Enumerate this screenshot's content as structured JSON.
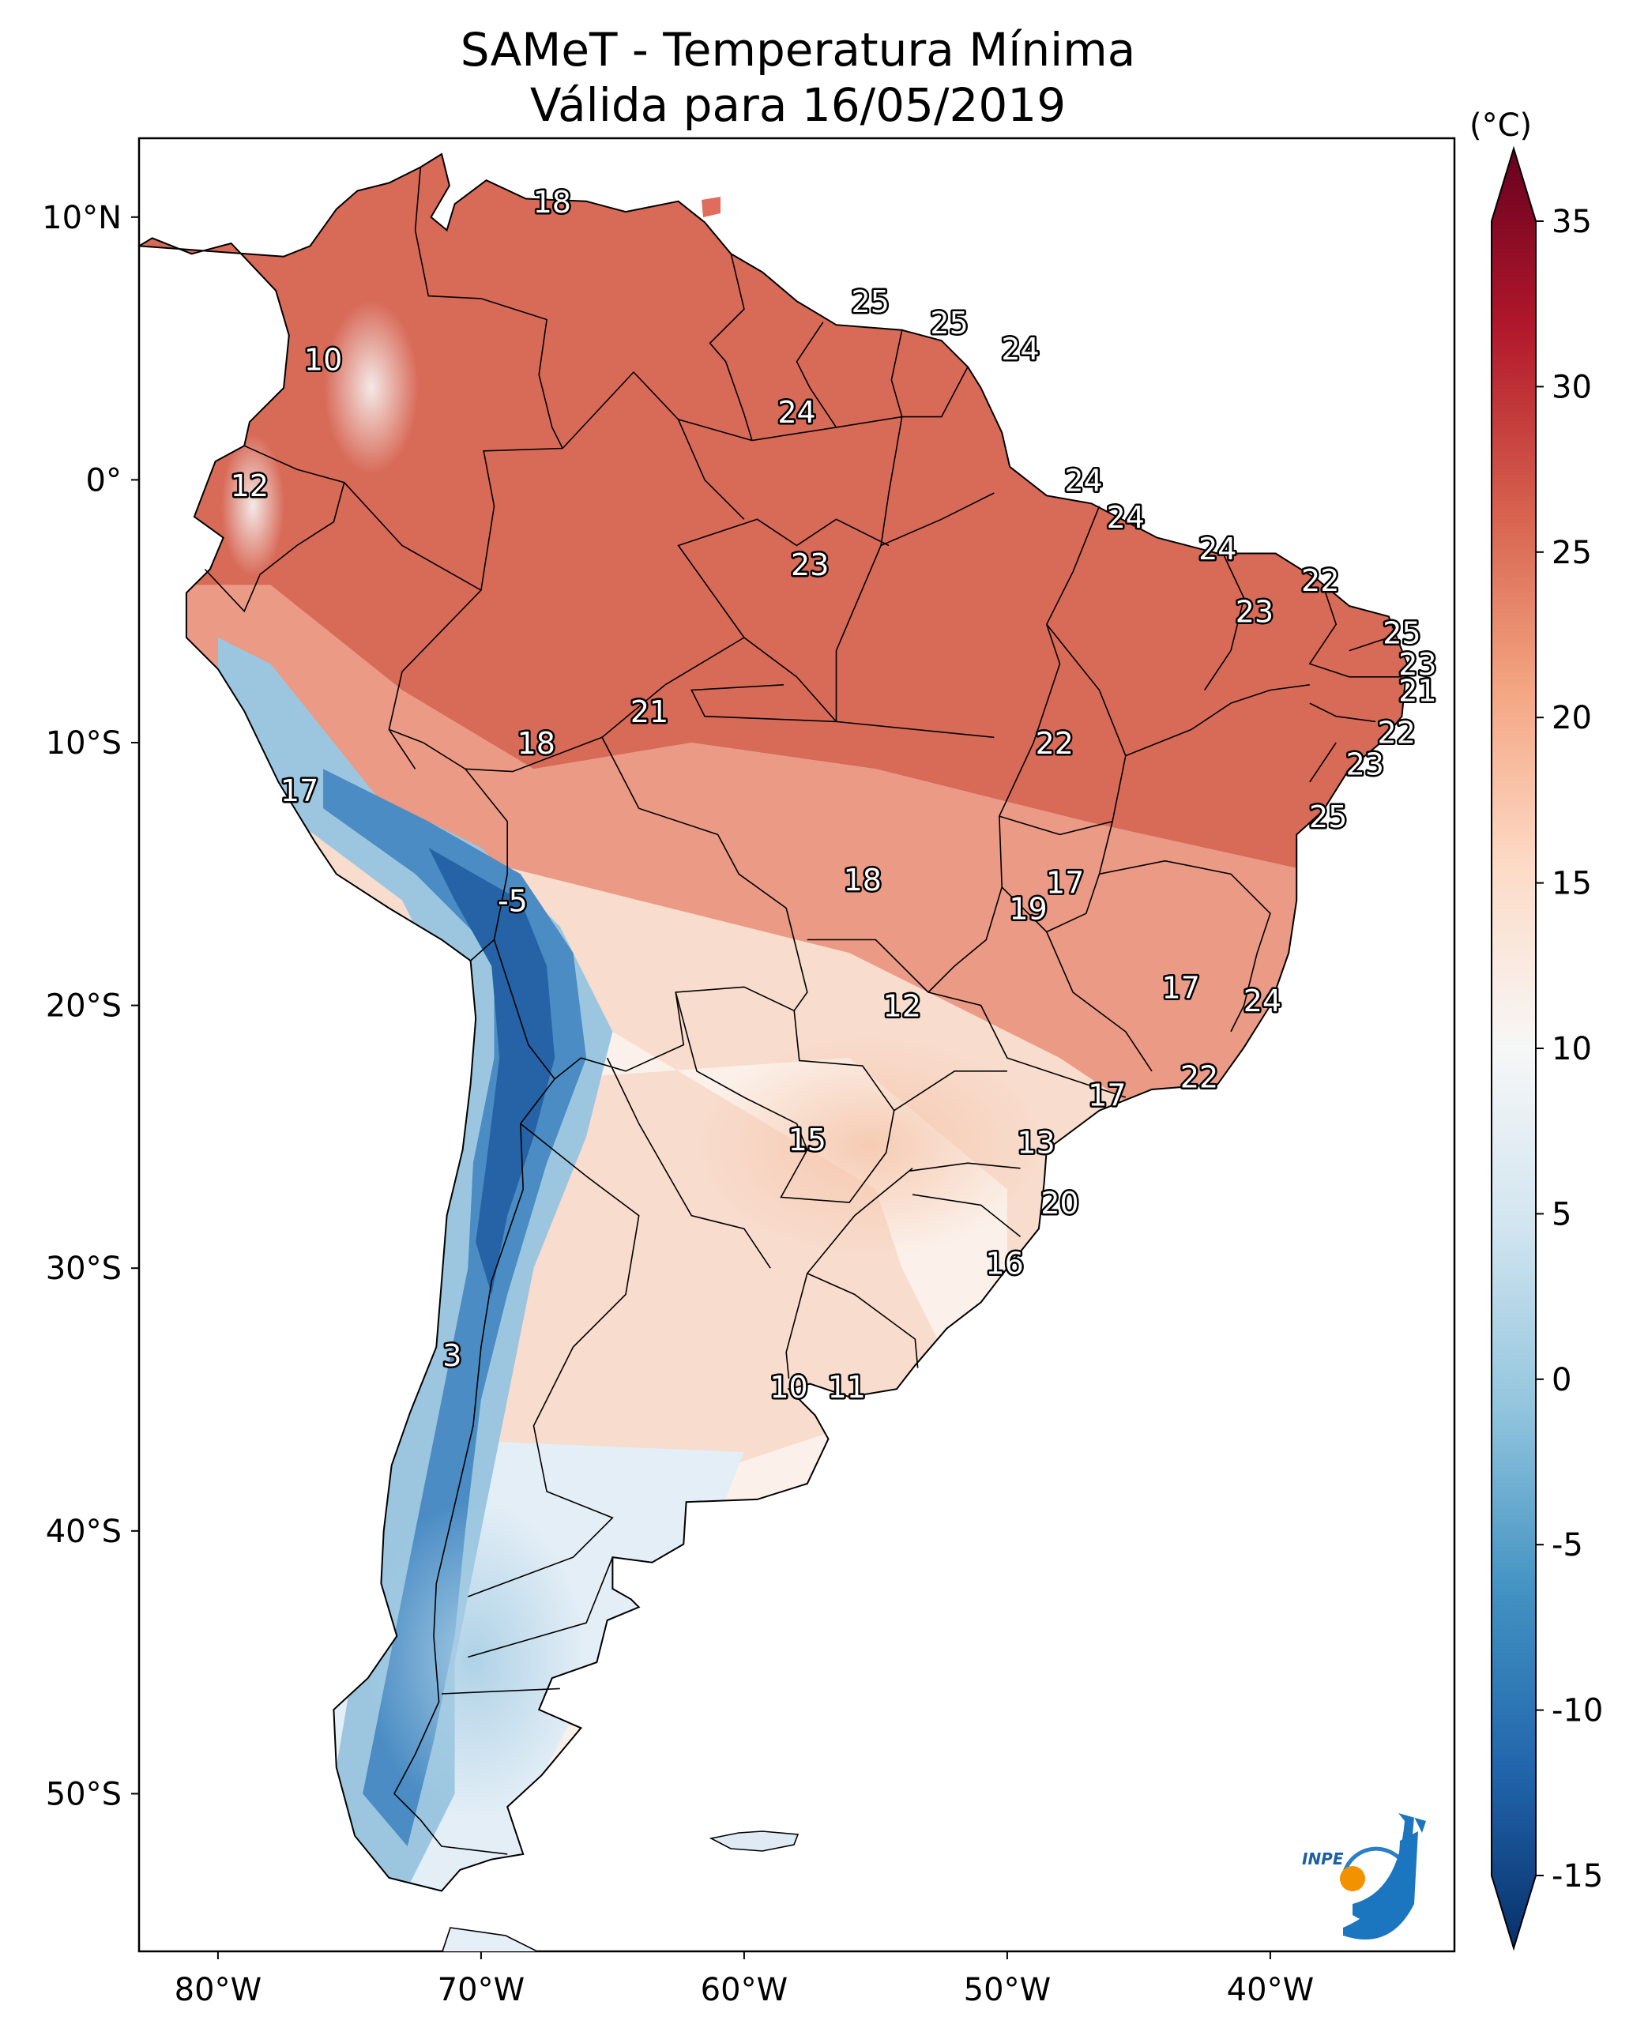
{
  "title": {
    "line1": "SAMeT - Temperatura Mínima",
    "line2": "Válida para 16/05/2019"
  },
  "axes": {
    "lat_ticks": [
      {
        "label": "10°N",
        "lat": 10
      },
      {
        "label": "0°",
        "lat": 0
      },
      {
        "label": "10°S",
        "lat": -10
      },
      {
        "label": "20°S",
        "lat": -20
      },
      {
        "label": "30°S",
        "lat": -30
      },
      {
        "label": "40°S",
        "lat": -40
      },
      {
        "label": "50°S",
        "lat": -50
      }
    ],
    "lon_ticks": [
      {
        "label": "80°W",
        "lon": -80
      },
      {
        "label": "70°W",
        "lon": -70
      },
      {
        "label": "60°W",
        "lon": -60
      },
      {
        "label": "50°W",
        "lon": -50
      },
      {
        "label": "40°W",
        "lon": -40
      }
    ],
    "lon_range": [
      -83,
      -33
    ],
    "lat_range": [
      -56,
      13
    ]
  },
  "colorbar": {
    "unit": "(°C)",
    "ticks": [
      "35",
      "30",
      "25",
      "20",
      "15",
      "10",
      "5",
      "0",
      "-5",
      "-10",
      "-15"
    ],
    "range": [
      -15,
      35
    ],
    "extend": "both",
    "colors": [
      "#08306b",
      "#2166ac",
      "#4393c3",
      "#92c5de",
      "#d1e5f0",
      "#f7f7f7",
      "#fddbc7",
      "#f4a582",
      "#d6604d",
      "#b2182b",
      "#67001f"
    ]
  },
  "chart_data": {
    "type": "heatmap",
    "variable": "Temperatura Mínima (°C)",
    "labels": [
      {
        "lon": -67.3,
        "lat": 10.6,
        "value": "18"
      },
      {
        "lon": -55.2,
        "lat": 6.8,
        "value": "25"
      },
      {
        "lon": -52.2,
        "lat": 6.0,
        "value": "25"
      },
      {
        "lon": -49.5,
        "lat": 5.0,
        "value": "24"
      },
      {
        "lon": -76.0,
        "lat": 4.6,
        "value": "10"
      },
      {
        "lon": -58.0,
        "lat": 2.6,
        "value": "24"
      },
      {
        "lon": -78.8,
        "lat": -0.2,
        "value": "12"
      },
      {
        "lon": -47.1,
        "lat": 0.0,
        "value": "24"
      },
      {
        "lon": -45.5,
        "lat": -1.4,
        "value": "24"
      },
      {
        "lon": -42.0,
        "lat": -2.6,
        "value": "24"
      },
      {
        "lon": -38.1,
        "lat": -3.8,
        "value": "22"
      },
      {
        "lon": -57.5,
        "lat": -3.2,
        "value": "23"
      },
      {
        "lon": -40.6,
        "lat": -5.0,
        "value": "23"
      },
      {
        "lon": -35.0,
        "lat": -5.8,
        "value": "25"
      },
      {
        "lon": -34.4,
        "lat": -7.0,
        "value": "23"
      },
      {
        "lon": -34.4,
        "lat": -8.0,
        "value": "21"
      },
      {
        "lon": -63.6,
        "lat": -8.8,
        "value": "21"
      },
      {
        "lon": -35.2,
        "lat": -9.6,
        "value": "22"
      },
      {
        "lon": -67.9,
        "lat": -10.0,
        "value": "18"
      },
      {
        "lon": -48.2,
        "lat": -10.0,
        "value": "22"
      },
      {
        "lon": -36.4,
        "lat": -10.8,
        "value": "23"
      },
      {
        "lon": -76.9,
        "lat": -11.8,
        "value": "17"
      },
      {
        "lon": -37.8,
        "lat": -12.8,
        "value": "25"
      },
      {
        "lon": -55.5,
        "lat": -15.2,
        "value": "18"
      },
      {
        "lon": -47.8,
        "lat": -15.3,
        "value": "17"
      },
      {
        "lon": -49.2,
        "lat": -16.3,
        "value": "19"
      },
      {
        "lon": -68.8,
        "lat": -16.0,
        "value": "-5"
      },
      {
        "lon": -43.4,
        "lat": -19.3,
        "value": "17"
      },
      {
        "lon": -40.3,
        "lat": -19.8,
        "value": "24"
      },
      {
        "lon": -54.0,
        "lat": -20.0,
        "value": "12"
      },
      {
        "lon": -42.7,
        "lat": -22.7,
        "value": "22"
      },
      {
        "lon": -46.2,
        "lat": -23.4,
        "value": "17"
      },
      {
        "lon": -57.6,
        "lat": -25.1,
        "value": "15"
      },
      {
        "lon": -48.9,
        "lat": -25.2,
        "value": "13"
      },
      {
        "lon": -48.0,
        "lat": -27.5,
        "value": "20"
      },
      {
        "lon": -50.1,
        "lat": -29.8,
        "value": "16"
      },
      {
        "lon": -71.1,
        "lat": -33.3,
        "value": "3"
      },
      {
        "lon": -58.3,
        "lat": -34.5,
        "value": "10"
      },
      {
        "lon": -56.1,
        "lat": -34.5,
        "value": "11"
      }
    ]
  },
  "logo": {
    "text": "INPE"
  }
}
